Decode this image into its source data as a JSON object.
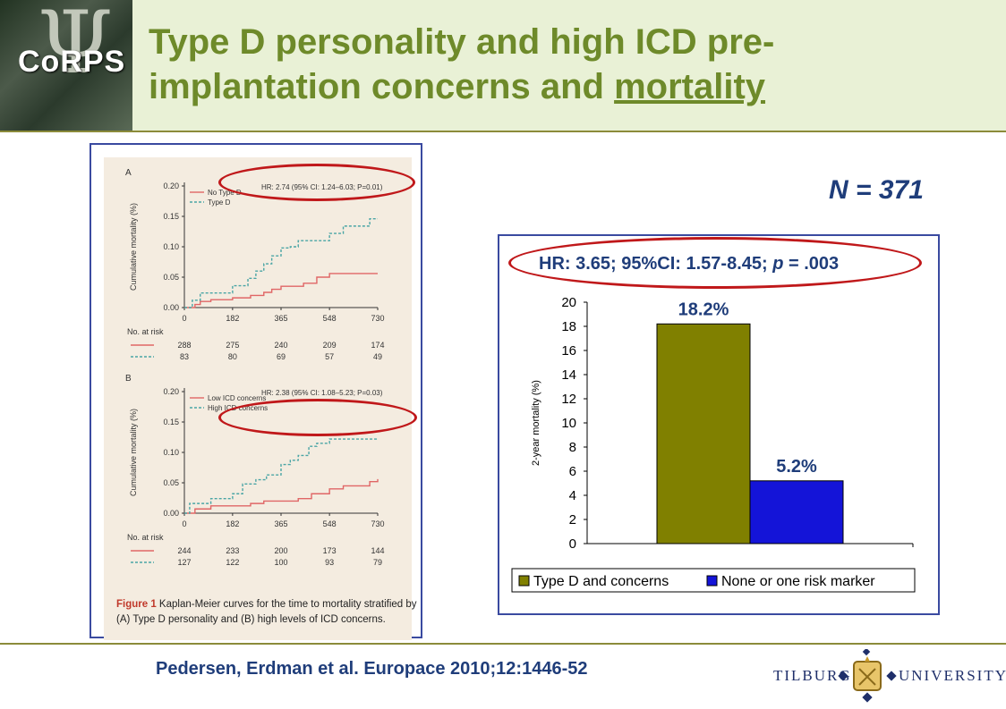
{
  "header": {
    "logo_text": "CoRPS",
    "title_part1": "Type D personality and high ICD pre-",
    "title_part2": "implantation concerns and ",
    "title_underlined": "mortality"
  },
  "sample_size": "N = 371",
  "footer": {
    "citation": "Pedersen, Erdman et al. Europace 2010;12:1446-52",
    "university_left": "TILBURG",
    "university_right": "UNIVERSITY"
  },
  "colors": {
    "title_green": "#6e8a2a",
    "navy": "#1f3d7a",
    "olive_bar": "#808000",
    "blue_bar": "#1414d8",
    "highlight_red": "#c0181a",
    "km_red": "#e06666",
    "km_teal": "#4aa5a5"
  },
  "chart_data": [
    {
      "type": "line",
      "panel": "A",
      "ylabel": "Cumulative mortality (%)",
      "xticks": [
        0,
        182,
        365,
        548,
        730
      ],
      "yticks": [
        "0.00",
        "0.05",
        "0.10",
        "0.15",
        "0.20"
      ],
      "ylim": [
        0,
        0.2
      ],
      "xlim": [
        0,
        730
      ],
      "annotation": "HR: 2.74 (95% CI: 1.24–6.03; P=0.01)",
      "series": [
        {
          "name": "No Type D",
          "color": "#e06666",
          "dash": false,
          "x": [
            0,
            40,
            60,
            100,
            182,
            250,
            300,
            330,
            365,
            450,
            500,
            548,
            730
          ],
          "y": [
            0.0,
            0.005,
            0.01,
            0.013,
            0.016,
            0.02,
            0.025,
            0.03,
            0.035,
            0.04,
            0.05,
            0.056,
            0.056
          ]
        },
        {
          "name": "Type D",
          "color": "#4aa5a5",
          "dash": true,
          "x": [
            0,
            30,
            60,
            120,
            182,
            240,
            270,
            300,
            330,
            365,
            400,
            430,
            548,
            600,
            700,
            730
          ],
          "y": [
            0.0,
            0.012,
            0.024,
            0.024,
            0.036,
            0.048,
            0.06,
            0.072,
            0.085,
            0.098,
            0.1,
            0.11,
            0.122,
            0.134,
            0.146,
            0.146
          ]
        }
      ],
      "risk_table_label": "No. at risk",
      "risk_rows": [
        [
          "288",
          "275",
          "240",
          "209",
          "174"
        ],
        [
          "83",
          "80",
          "69",
          "57",
          "49"
        ]
      ]
    },
    {
      "type": "line",
      "panel": "B",
      "ylabel": "Cumulative mortality (%)",
      "xticks": [
        0,
        182,
        365,
        548,
        730
      ],
      "yticks": [
        "0.00",
        "0.05",
        "0.10",
        "0.15",
        "0.20"
      ],
      "ylim": [
        0,
        0.2
      ],
      "xlim": [
        0,
        730
      ],
      "annotation": "HR: 2.38 (95% CI: 1.08–5.23; P=0.03)",
      "series": [
        {
          "name": "Low ICD concerns",
          "color": "#e06666",
          "dash": false,
          "x": [
            0,
            40,
            100,
            182,
            250,
            300,
            365,
            430,
            480,
            548,
            600,
            700,
            730
          ],
          "y": [
            0.0,
            0.007,
            0.012,
            0.012,
            0.016,
            0.02,
            0.02,
            0.024,
            0.032,
            0.04,
            0.045,
            0.052,
            0.056
          ]
        },
        {
          "name": "High ICD concerns",
          "color": "#4aa5a5",
          "dash": true,
          "x": [
            0,
            20,
            100,
            182,
            220,
            270,
            310,
            365,
            400,
            430,
            470,
            500,
            548,
            730
          ],
          "y": [
            0.0,
            0.016,
            0.024,
            0.032,
            0.048,
            0.055,
            0.063,
            0.08,
            0.087,
            0.095,
            0.11,
            0.115,
            0.122,
            0.122
          ]
        }
      ],
      "risk_table_label": "No. at risk",
      "risk_rows": [
        [
          "244",
          "233",
          "200",
          "173",
          "144"
        ],
        [
          "127",
          "122",
          "100",
          "93",
          "79"
        ]
      ]
    },
    {
      "type": "bar",
      "categories": [
        "Type D and concerns",
        "None or one risk marker"
      ],
      "values": [
        18.2,
        5.2
      ],
      "value_labels": [
        "18.2%",
        "5.2%"
      ],
      "colors": [
        "#808000",
        "#1414d8"
      ],
      "ylabel": "2-year mortality (%)",
      "ylim": [
        0,
        20
      ],
      "yticks": [
        0,
        2,
        4,
        6,
        8,
        10,
        12,
        14,
        16,
        18,
        20
      ],
      "legend": "bottom",
      "annotation_parts": [
        "HR: 3.65; 95%CI: 1.57-8.45; ",
        "p",
        " = .003"
      ]
    }
  ],
  "figure_caption": {
    "label": "Figure 1",
    "text": " Kaplan-Meier curves for the time to mortality stratified by (A) Type D personality and (B) high levels of ICD concerns."
  }
}
